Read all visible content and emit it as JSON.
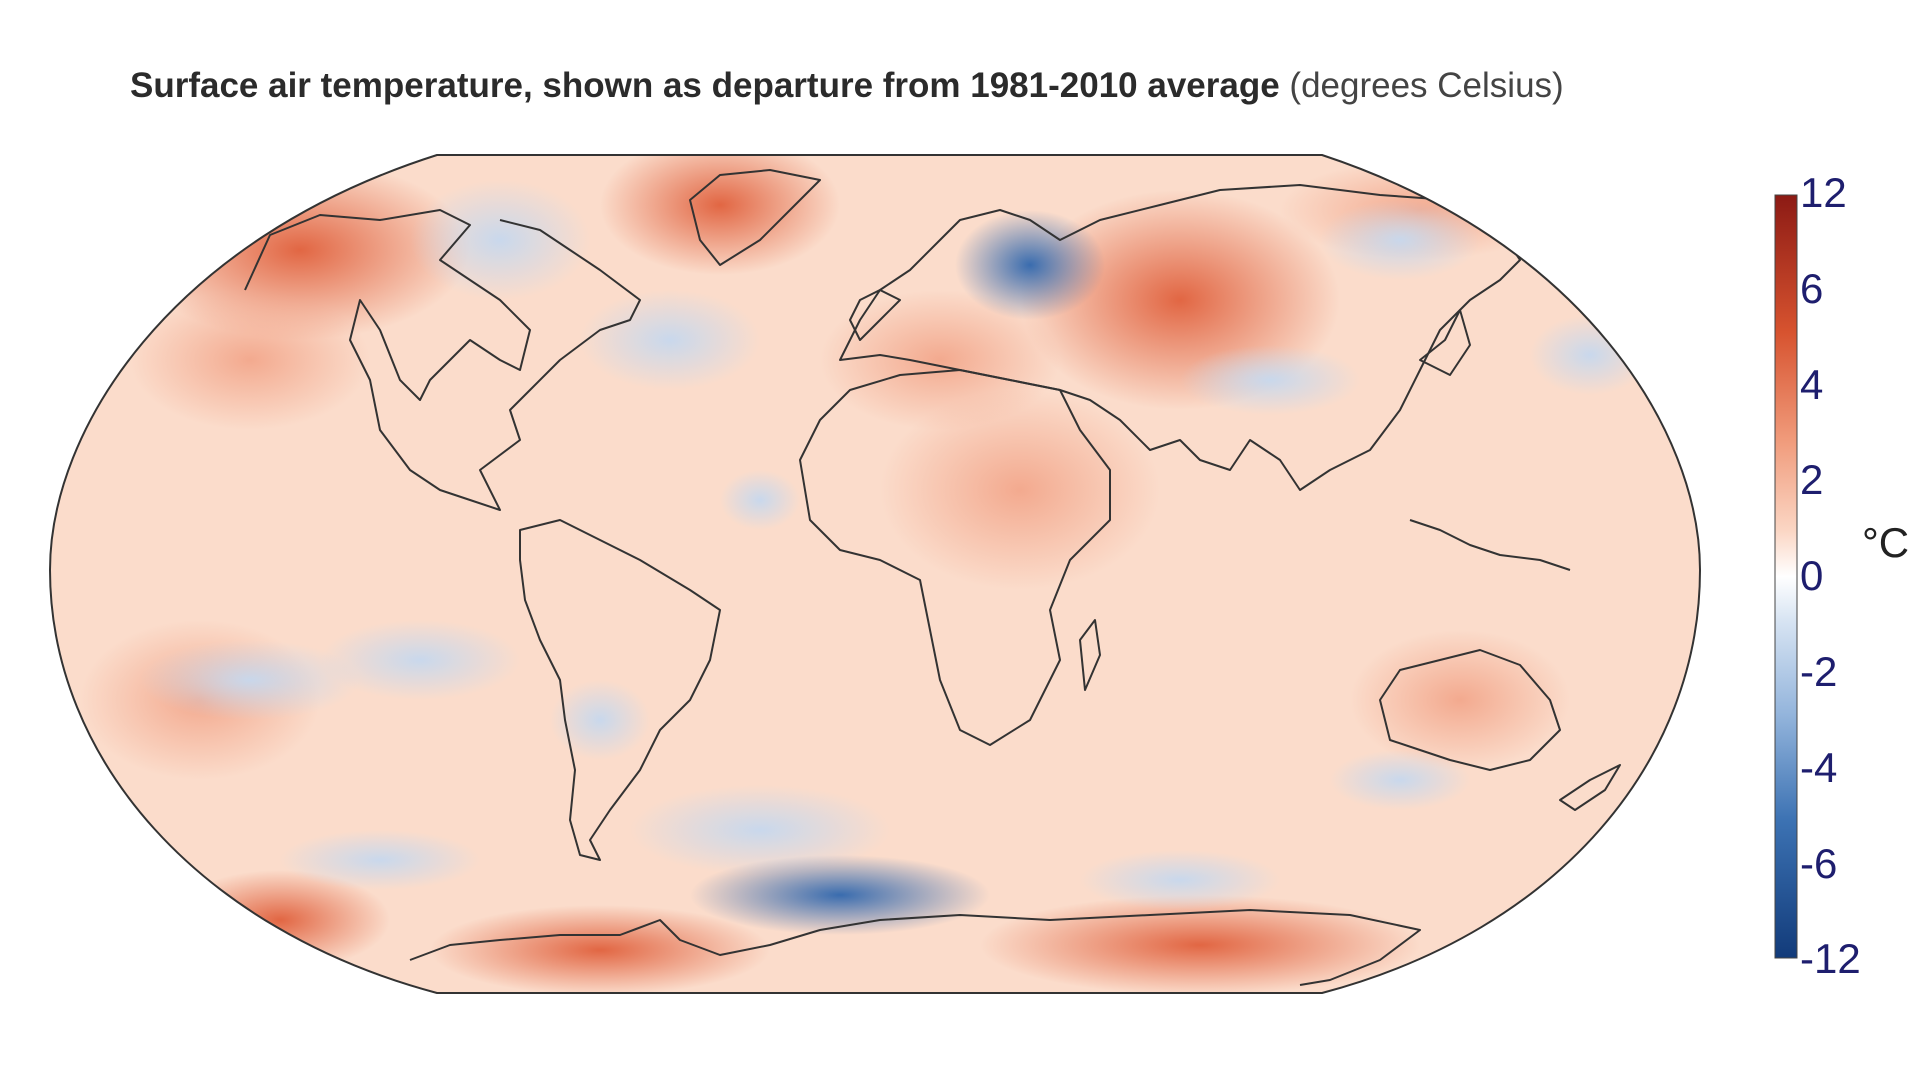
{
  "title": {
    "main": "Surface air temperature, shown as departure from 1981-2010 average",
    "unit_note": "(degrees Celsius)"
  },
  "colorbar": {
    "unit": "°C",
    "ticks": [
      "12",
      "6",
      "4",
      "2",
      "0",
      "-2",
      "-4",
      "-6",
      "-12"
    ],
    "colors": {
      "max": "#8c1a14",
      "mid": "#ffffff",
      "min": "#123b7a"
    }
  },
  "map": {
    "projection": "Robinson",
    "background_anomaly": "warm",
    "colors": {
      "warm_light": "#fbd9c7",
      "warm": "#f2a488",
      "hot": "#e0603c",
      "cool_light": "#dde8f4",
      "cool": "#9ebde0",
      "cold": "#3c72b3",
      "coastline": "#333333"
    }
  }
}
